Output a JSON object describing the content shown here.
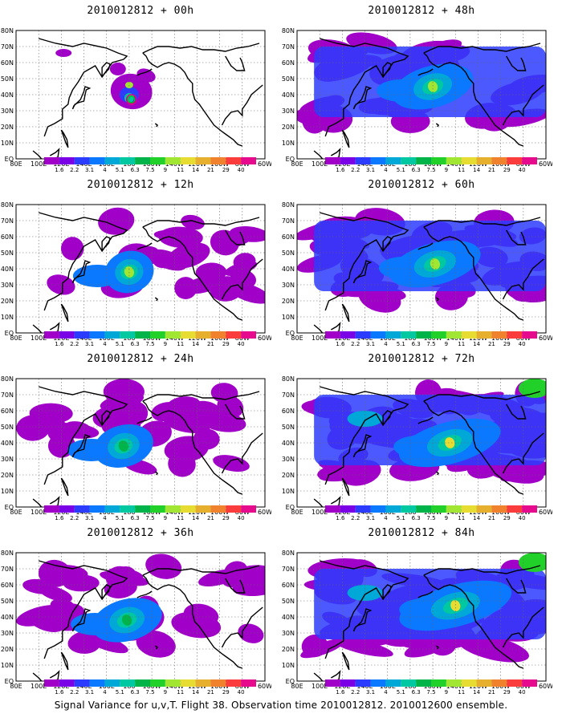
{
  "figure": {
    "caption": "Signal Variance for u,v,T. Flight 38. Observation time 2010012812. 2010012600 ensemble."
  },
  "chart_data": {
    "type": "heatmap",
    "panels": [
      {
        "title": "2010012812 + 00h",
        "lead_h": 0,
        "column": "left",
        "row": 1
      },
      {
        "title": "2010012812 + 12h",
        "lead_h": 12,
        "column": "left",
        "row": 2
      },
      {
        "title": "2010012812 + 24h",
        "lead_h": 24,
        "column": "left",
        "row": 3
      },
      {
        "title": "2010012812 + 36h",
        "lead_h": 36,
        "column": "left",
        "row": 4
      },
      {
        "title": "2010012812 + 48h",
        "lead_h": 48,
        "column": "right",
        "row": 1
      },
      {
        "title": "2010012812 + 60h",
        "lead_h": 60,
        "column": "right",
        "row": 2
      },
      {
        "title": "2010012812 + 72h",
        "lead_h": 72,
        "column": "right",
        "row": 3
      },
      {
        "title": "2010012812 + 84h",
        "lead_h": 84,
        "column": "right",
        "row": 4
      }
    ],
    "x_ticks": [
      "80E",
      "100E",
      "120E",
      "140E",
      "160E",
      "180",
      "160W",
      "140W",
      "120W",
      "100W",
      "80W",
      "60W"
    ],
    "y_ticks": [
      "EQ",
      "10N",
      "20N",
      "30N",
      "40N",
      "50N",
      "60N",
      "70N",
      "80N"
    ],
    "grid": true,
    "colorbar": {
      "levels": [
        "1.6",
        "2.2",
        "3.1",
        "4",
        "5.1",
        "6.3",
        "7.5",
        "9",
        "11",
        "14",
        "21",
        "29",
        "40"
      ],
      "colors": [
        "#a000c8",
        "#7a00e6",
        "#2b3cff",
        "#0a78ff",
        "#00a8d8",
        "#00c8a0",
        "#00b44a",
        "#22d02a",
        "#a0e632",
        "#e6dc32",
        "#e6af2d",
        "#f0822d",
        "#fa3c3c",
        "#e60a8c"
      ]
    },
    "maxima": [
      {
        "lead_h": 0,
        "lon": 180,
        "lat": 40,
        "value": 9
      },
      {
        "lead_h": 12,
        "lon": 180,
        "lat": 38,
        "value": 9
      },
      {
        "lead_h": 24,
        "lon": 175,
        "lat": 38,
        "value": 6.3
      },
      {
        "lead_h": 36,
        "lon": 178,
        "lat": 38,
        "value": 6.3
      },
      {
        "lead_h": 48,
        "lon": -160,
        "lat": 45,
        "value": 9
      },
      {
        "lead_h": 60,
        "lon": -158,
        "lat": 43,
        "value": 9
      },
      {
        "lead_h": 72,
        "lon": -145,
        "lat": 40,
        "value": 11
      },
      {
        "lead_h": 84,
        "lon": -140,
        "lat": 47,
        "value": 11
      }
    ],
    "observation_marker": {
      "lon": 182,
      "lat": 37
    }
  }
}
